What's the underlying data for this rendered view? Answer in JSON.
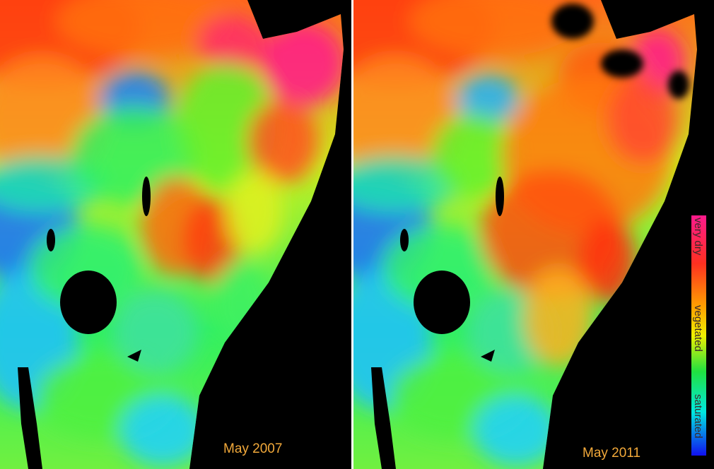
{
  "panels": [
    {
      "label": "May 2007"
    },
    {
      "label": "May 2011"
    }
  ],
  "legend": {
    "labels": [
      "very dry",
      "vegetated",
      "saturated"
    ]
  }
}
